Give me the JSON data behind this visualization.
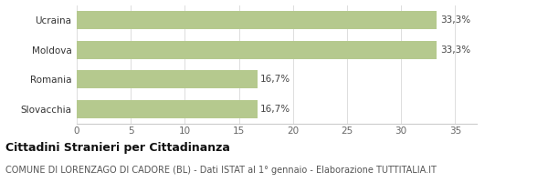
{
  "categories": [
    "Slovacchia",
    "Romania",
    "Moldova",
    "Ucraina"
  ],
  "values": [
    16.7,
    16.7,
    33.3,
    33.3
  ],
  "labels": [
    "16,7%",
    "16,7%",
    "33,3%",
    "33,3%"
  ],
  "bar_color": "#b5c98e",
  "background_color": "#ffffff",
  "xlim": [
    0,
    37
  ],
  "xticks": [
    0,
    5,
    10,
    15,
    20,
    25,
    30,
    35
  ],
  "title_bold": "Cittadini Stranieri per Cittadinanza",
  "subtitle": "COMUNE DI LORENZAGO DI CADORE (BL) - Dati ISTAT al 1° gennaio - Elaborazione TUTTITALIA.IT",
  "title_fontsize": 9,
  "subtitle_fontsize": 7,
  "label_fontsize": 7.5,
  "tick_fontsize": 7.5,
  "bar_height": 0.62
}
